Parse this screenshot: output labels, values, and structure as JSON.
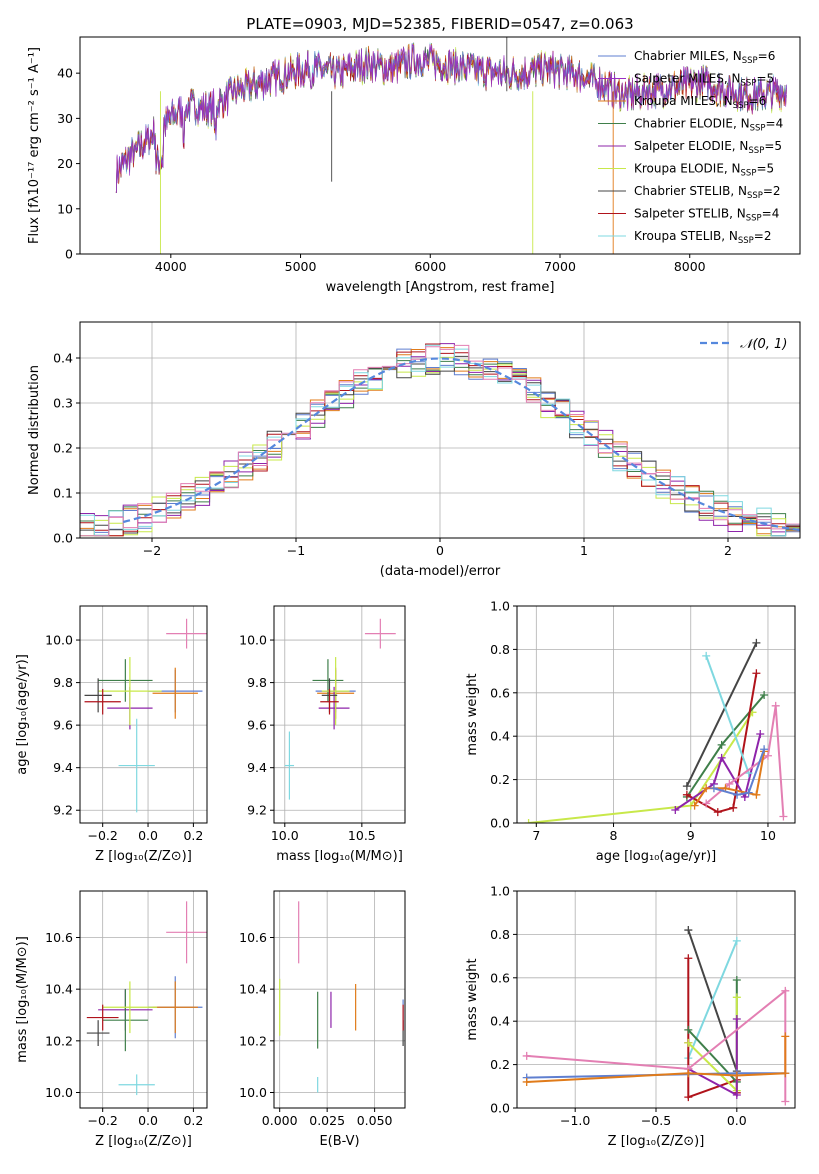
{
  "figure": {
    "title": "PLATE=0903, MJD=52385, FIBERID=0547, z=0.063"
  },
  "colors": {
    "chabrier_miles": "#5f7fd0",
    "salpeter_miles": "#9a2fc4",
    "kroupa_miles": "#e07b1a",
    "chabrier_elodie": "#3f7f4a",
    "salpeter_elodie": "#8e24aa",
    "kroupa_elodie": "#c8e84a",
    "chabrier_stelib": "#454545",
    "salpeter_stelib": "#b0131b",
    "kroupa_stelib": "#7fd8e0",
    "normal_curve": "#5588dd",
    "pink_extra": "#e37fb3"
  },
  "chart_data": [
    {
      "id": "spectrum",
      "type": "line",
      "title": "PLATE=0903, MJD=52385, FIBERID=0547, z=0.063",
      "xlabel": "wavelength [Angstrom, rest frame]",
      "ylabel": "Flux [fλ10⁻¹⁷ erg cm⁻² s⁻¹ A⁻¹]",
      "xlim": [
        3300,
        8850
      ],
      "ylim": [
        0,
        48
      ],
      "xticks": [
        "4000",
        "5000",
        "6000",
        "7000",
        "8000"
      ],
      "yticks": [
        "0",
        "10",
        "20",
        "30",
        "40"
      ],
      "continuum_x": [
        3580,
        3700,
        3850,
        4000,
        4150,
        4300,
        4500,
        4700,
        4900,
        5100,
        5300,
        5500,
        5700,
        5900,
        6100,
        6300,
        6500,
        6700,
        6900,
        7100,
        7300,
        7500,
        7700,
        7900,
        8100,
        8300,
        8500,
        8750
      ],
      "continuum_y": [
        18,
        22,
        26,
        30,
        33,
        32,
        36,
        38,
        40,
        41,
        40,
        42,
        41,
        43,
        42,
        41,
        40,
        40,
        41,
        40,
        38,
        35,
        36,
        37,
        38,
        36,
        35,
        36
      ],
      "legend": [
        {
          "label": "Chabrier MILES, N",
          "sub": "SSP",
          "tail": "=6",
          "color_key": "chabrier_miles"
        },
        {
          "label": "Salpeter MILES, N",
          "sub": "SSP",
          "tail": "=5",
          "color_key": "salpeter_miles"
        },
        {
          "label": "Kroupa MILES, N",
          "sub": "SSP",
          "tail": "=6",
          "color_key": "kroupa_miles"
        },
        {
          "label": "Chabrier ELODIE, N",
          "sub": "SSP",
          "tail": "=4",
          "color_key": "chabrier_elodie"
        },
        {
          "label": "Salpeter ELODIE, N",
          "sub": "SSP",
          "tail": "=5",
          "color_key": "salpeter_elodie"
        },
        {
          "label": "Kroupa ELODIE, N",
          "sub": "SSP",
          "tail": "=5",
          "color_key": "kroupa_elodie"
        },
        {
          "label": "Chabrier STELIB, N",
          "sub": "SSP",
          "tail": "=2",
          "color_key": "chabrier_stelib"
        },
        {
          "label": "Salpeter STELIB, N",
          "sub": "SSP",
          "tail": "=4",
          "color_key": "salpeter_stelib"
        },
        {
          "label": "Kroupa STELIB, N",
          "sub": "SSP",
          "tail": "=2",
          "color_key": "kroupa_stelib"
        }
      ]
    },
    {
      "id": "residuals",
      "type": "line",
      "xlabel": "(data-model)/error",
      "ylabel": "Normed distribution",
      "xlim": [
        -2.5,
        2.5
      ],
      "ylim": [
        0,
        0.48
      ],
      "xticks": [
        "−2",
        "−1",
        "0",
        "1",
        "2"
      ],
      "yticks": [
        "0.0",
        "0.1",
        "0.2",
        "0.3",
        "0.4"
      ],
      "legend_label": "𝒩(0, 1)",
      "bin_width": 0.1
    },
    {
      "id": "age_vs_Z",
      "type": "scatter",
      "xlabel": "Z [log₁₀(Z/Z⊙)]",
      "ylabel": "age  [log₁₀(age/yr)]",
      "xlim": [
        -0.3,
        0.26
      ],
      "ylim": [
        9.14,
        10.16
      ],
      "xticks": [
        "−0.2",
        "0.0",
        "0.2"
      ],
      "yticks": [
        "9.2",
        "9.4",
        "9.6",
        "9.8",
        "10.0"
      ],
      "points": [
        {
          "x": 0.12,
          "y": 9.76,
          "ex": 0.12,
          "ey": 0.1,
          "c": "chabrier_miles"
        },
        {
          "x": 0.12,
          "y": 9.75,
          "ex": 0.1,
          "ey": 0.12,
          "c": "kroupa_miles"
        },
        {
          "x": -0.08,
          "y": 9.68,
          "ex": 0.1,
          "ey": 0.1,
          "c": "salpeter_elodie"
        },
        {
          "x": -0.1,
          "y": 9.81,
          "ex": 0.12,
          "ey": 0.1,
          "c": "chabrier_elodie"
        },
        {
          "x": -0.08,
          "y": 9.76,
          "ex": 0.14,
          "ey": 0.16,
          "c": "kroupa_elodie"
        },
        {
          "x": -0.22,
          "y": 9.74,
          "ex": 0.06,
          "ey": 0.08,
          "c": "chabrier_stelib"
        },
        {
          "x": -0.2,
          "y": 9.71,
          "ex": 0.08,
          "ey": 0.06,
          "c": "salpeter_stelib"
        },
        {
          "x": -0.05,
          "y": 9.41,
          "ex": 0.08,
          "ey": 0.22,
          "c": "kroupa_stelib"
        },
        {
          "x": 0.17,
          "y": 10.03,
          "ex": 0.09,
          "ey": 0.07,
          "c": "pink_extra"
        }
      ]
    },
    {
      "id": "age_vs_mass",
      "type": "scatter",
      "xlabel": "mass [log₁₀(M/M⊙)]",
      "xlim": [
        9.93,
        10.78
      ],
      "ylim": [
        9.14,
        10.16
      ],
      "xticks": [
        "10.0",
        "10.5"
      ],
      "yticks": [
        "9.2",
        "9.4",
        "9.6",
        "9.8",
        "10.0"
      ],
      "points": [
        {
          "x": 10.33,
          "y": 9.76,
          "ex": 0.13,
          "ey": 0.1,
          "c": "chabrier_miles"
        },
        {
          "x": 10.33,
          "y": 9.75,
          "ex": 0.12,
          "ey": 0.12,
          "c": "kroupa_miles"
        },
        {
          "x": 10.32,
          "y": 9.68,
          "ex": 0.1,
          "ey": 0.1,
          "c": "salpeter_elodie"
        },
        {
          "x": 10.28,
          "y": 9.81,
          "ex": 0.1,
          "ey": 0.1,
          "c": "chabrier_elodie"
        },
        {
          "x": 10.33,
          "y": 9.76,
          "ex": 0.09,
          "ey": 0.16,
          "c": "kroupa_elodie"
        },
        {
          "x": 10.29,
          "y": 9.74,
          "ex": 0.05,
          "ey": 0.08,
          "c": "chabrier_stelib"
        },
        {
          "x": 10.29,
          "y": 9.71,
          "ex": 0.06,
          "ey": 0.06,
          "c": "salpeter_stelib"
        },
        {
          "x": 10.03,
          "y": 9.41,
          "ex": 0.03,
          "ey": 0.16,
          "c": "kroupa_stelib"
        },
        {
          "x": 10.62,
          "y": 10.03,
          "ex": 0.1,
          "ey": 0.07,
          "c": "pink_extra"
        }
      ]
    },
    {
      "id": "weight_vs_age",
      "type": "line",
      "xlabel": "age  [log₁₀(age/yr)]",
      "ylabel": "mass weight",
      "xlim": [
        6.75,
        10.35
      ],
      "ylim": [
        0,
        1
      ],
      "xticks": [
        "7",
        "8",
        "9",
        "10"
      ],
      "yticks": [
        "0.0",
        "0.2",
        "0.4",
        "0.6",
        "0.8",
        "1.0"
      ],
      "series": [
        {
          "c": "kroupa_elodie",
          "x": [
            6.9,
            9.0,
            9.8
          ],
          "y": [
            0.0,
            0.08,
            0.51
          ]
        },
        {
          "c": "chabrier_stelib",
          "x": [
            8.95,
            9.85
          ],
          "y": [
            0.17,
            0.83
          ]
        },
        {
          "c": "chabrier_elodie",
          "x": [
            8.95,
            9.4,
            9.95
          ],
          "y": [
            0.12,
            0.36,
            0.59
          ]
        },
        {
          "c": "salpeter_stelib",
          "x": [
            8.95,
            9.35,
            9.55,
            9.85
          ],
          "y": [
            0.13,
            0.05,
            0.07,
            0.69
          ]
        },
        {
          "c": "salpeter_elodie",
          "x": [
            8.8,
            9.3,
            9.4,
            9.7,
            9.9
          ],
          "y": [
            0.06,
            0.18,
            0.3,
            0.12,
            0.41
          ]
        },
        {
          "c": "kroupa_stelib",
          "x": [
            9.2,
            9.75
          ],
          "y": [
            0.77,
            0.23
          ]
        },
        {
          "c": "pink_extra",
          "x": [
            9.2,
            9.5,
            10.0,
            10.1,
            10.2
          ],
          "y": [
            0.09,
            0.18,
            0.31,
            0.54,
            0.03
          ]
        },
        {
          "c": "kroupa_miles",
          "x": [
            9.05,
            9.2,
            9.45,
            9.85,
            9.95
          ],
          "y": [
            0.08,
            0.16,
            0.16,
            0.13,
            0.33
          ]
        },
        {
          "c": "chabrier_miles",
          "x": [
            9.3,
            9.6,
            9.75,
            9.95
          ],
          "y": [
            0.16,
            0.13,
            0.14,
            0.34
          ]
        }
      ]
    },
    {
      "id": "mass_vs_Z",
      "type": "scatter",
      "xlabel": "Z [log₁₀(Z/Z⊙)]",
      "ylabel": "mass [log₁₀(M/M⊙)]",
      "xlim": [
        -0.3,
        0.26
      ],
      "ylim": [
        9.94,
        10.78
      ],
      "xticks": [
        "−0.2",
        "0.0",
        "0.2"
      ],
      "yticks": [
        "10.0",
        "10.2",
        "10.4",
        "10.6"
      ],
      "points": [
        {
          "x": 0.12,
          "y": 10.33,
          "ex": 0.12,
          "ey": 0.12,
          "c": "chabrier_miles"
        },
        {
          "x": 0.12,
          "y": 10.33,
          "ex": 0.1,
          "ey": 0.1,
          "c": "kroupa_miles"
        },
        {
          "x": -0.1,
          "y": 10.32,
          "ex": 0.12,
          "ey": 0.08,
          "c": "salpeter_elodie"
        },
        {
          "x": -0.1,
          "y": 10.28,
          "ex": 0.1,
          "ey": 0.12,
          "c": "chabrier_elodie"
        },
        {
          "x": -0.08,
          "y": 10.33,
          "ex": 0.12,
          "ey": 0.1,
          "c": "kroupa_elodie"
        },
        {
          "x": -0.22,
          "y": 10.23,
          "ex": 0.05,
          "ey": 0.05,
          "c": "chabrier_stelib"
        },
        {
          "x": -0.2,
          "y": 10.29,
          "ex": 0.07,
          "ey": 0.05,
          "c": "salpeter_stelib"
        },
        {
          "x": -0.05,
          "y": 10.03,
          "ex": 0.08,
          "ey": 0.04,
          "c": "kroupa_stelib"
        },
        {
          "x": 0.17,
          "y": 10.62,
          "ex": 0.09,
          "ey": 0.12,
          "c": "pink_extra"
        }
      ]
    },
    {
      "id": "mass_vs_ebv",
      "type": "scatter",
      "xlabel": "E(B-V)",
      "xlim": [
        -0.003,
        0.066
      ],
      "ylim": [
        9.94,
        10.78
      ],
      "xticks": [
        "0.000",
        "0.025",
        "0.050"
      ],
      "yticks": [
        "10.0",
        "10.2",
        "10.4",
        "10.6"
      ],
      "points": [
        {
          "x": 0.065,
          "y": 10.3,
          "ex": 0,
          "ey": 0.06,
          "c": "chabrier_miles"
        },
        {
          "x": 0.04,
          "y": 10.33,
          "ex": 0,
          "ey": 0.09,
          "c": "kroupa_miles"
        },
        {
          "x": 0.027,
          "y": 10.32,
          "ex": 0,
          "ey": 0.07,
          "c": "salpeter_elodie"
        },
        {
          "x": 0.02,
          "y": 10.28,
          "ex": 0,
          "ey": 0.11,
          "c": "chabrier_elodie"
        },
        {
          "x": 0.0,
          "y": 10.33,
          "ex": 0,
          "ey": 0.11,
          "c": "kroupa_elodie"
        },
        {
          "x": 0.065,
          "y": 10.23,
          "ex": 0,
          "ey": 0.05,
          "c": "chabrier_stelib"
        },
        {
          "x": 0.065,
          "y": 10.29,
          "ex": 0,
          "ey": 0.05,
          "c": "salpeter_stelib"
        },
        {
          "x": 0.02,
          "y": 10.03,
          "ex": 0,
          "ey": 0.03,
          "c": "kroupa_stelib"
        },
        {
          "x": 0.01,
          "y": 10.62,
          "ex": 0,
          "ey": 0.12,
          "c": "pink_extra"
        }
      ]
    },
    {
      "id": "weight_vs_Z",
      "type": "line",
      "xlabel": "Z [log₁₀(Z/Z⊙)]",
      "ylabel": "mass weight",
      "xlim": [
        -1.36,
        0.36
      ],
      "ylim": [
        0,
        1
      ],
      "xticks": [
        "−1.0",
        "−0.5",
        "0.0"
      ],
      "yticks": [
        "0.0",
        "0.2",
        "0.4",
        "0.6",
        "0.8",
        "1.0"
      ],
      "series": [
        {
          "c": "chabrier_stelib",
          "x": [
            -0.3,
            0.0
          ],
          "y": [
            0.82,
            0.17
          ]
        },
        {
          "c": "kroupa_stelib",
          "x": [
            -0.3,
            0.0
          ],
          "y": [
            0.23,
            0.77
          ]
        },
        {
          "c": "salpeter_stelib",
          "x": [
            -0.3,
            -0.3,
            -0.3,
            0.0,
            0.0
          ],
          "y": [
            0.69,
            0.3,
            0.05,
            0.13,
            0.07
          ]
        },
        {
          "c": "chabrier_elodie",
          "x": [
            -0.3,
            0.0,
            0.0
          ],
          "y": [
            0.36,
            0.12,
            0.59
          ]
        },
        {
          "c": "kroupa_elodie",
          "x": [
            -0.3,
            0.0,
            0.0
          ],
          "y": [
            0.3,
            0.08,
            0.51
          ]
        },
        {
          "c": "salpeter_elodie",
          "x": [
            -0.3,
            0.0,
            0.0
          ],
          "y": [
            0.18,
            0.06,
            0.41
          ]
        },
        {
          "c": "pink_extra",
          "x": [
            -1.3,
            -0.3,
            0.3,
            0.3
          ],
          "y": [
            0.24,
            0.18,
            0.54,
            0.03
          ]
        },
        {
          "c": "chabrier_miles",
          "x": [
            -1.3,
            0.0,
            0.3
          ],
          "y": [
            0.14,
            0.16,
            0.16
          ]
        },
        {
          "c": "kroupa_miles",
          "x": [
            -1.3,
            -0.3,
            0.0,
            0.3,
            0.3
          ],
          "y": [
            0.12,
            0.16,
            0.15,
            0.16,
            0.33
          ]
        }
      ]
    }
  ]
}
